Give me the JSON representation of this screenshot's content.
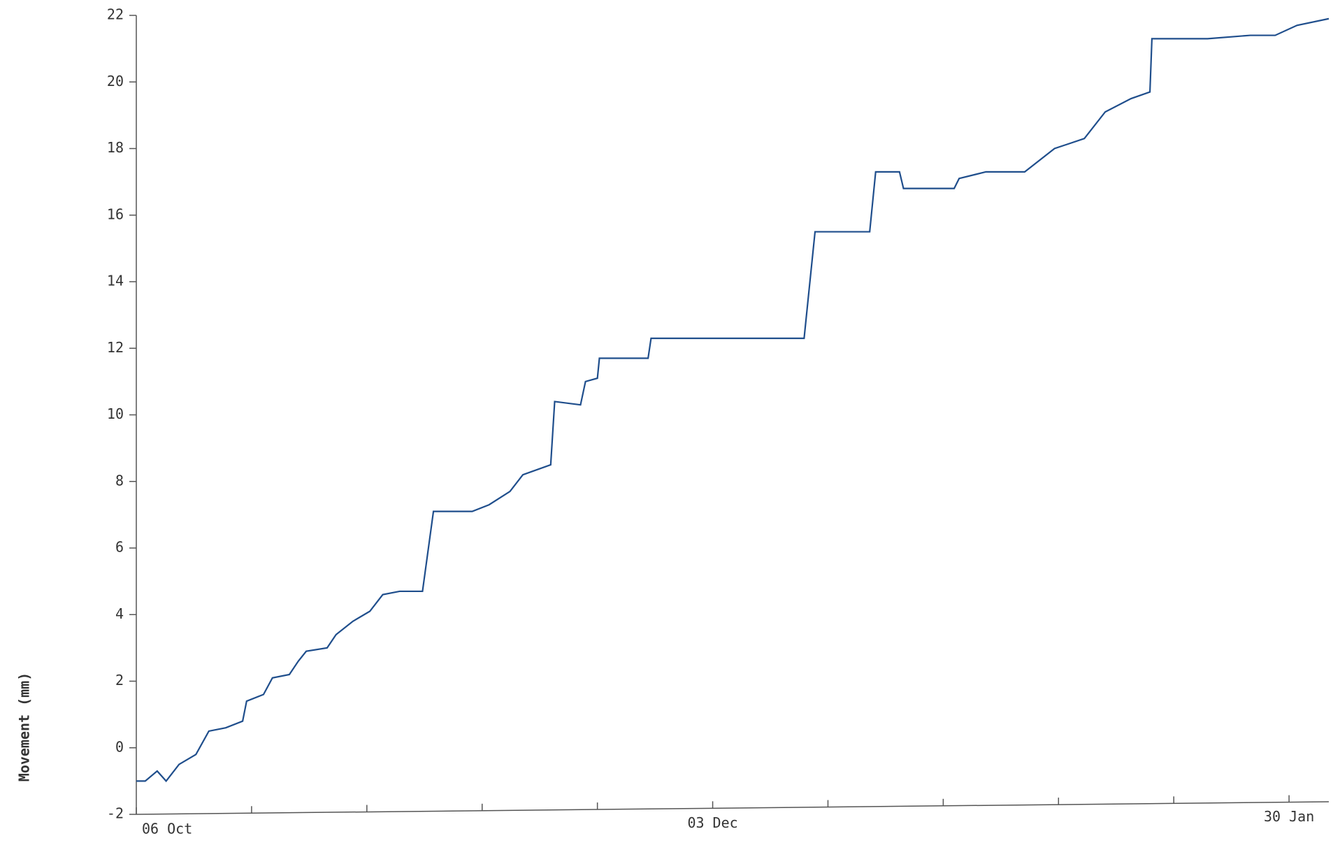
{
  "chart_data": {
    "type": "line",
    "ylabel": "Movement (mm)",
    "x": [
      0,
      0.9,
      2.1,
      3.0,
      4.3,
      6.0,
      7.3,
      9.0,
      10.7,
      11.1,
      12.8,
      13.7,
      15.4,
      16.3,
      17.1,
      19.2,
      20.1,
      21.8,
      23.5,
      24.8,
      26.5,
      28.8,
      29.9,
      33.8,
      35.5,
      37.6,
      38.9,
      41.7,
      42.1,
      44.7,
      45.2,
      46.4,
      46.6,
      51.5,
      51.8,
      67.2,
      68.3,
      73.8,
      74.4,
      76.8,
      77.2,
      82.3,
      82.8,
      85.5,
      89.4,
      92.4,
      95.4,
      97.5,
      100.1,
      102.0,
      102.2,
      107.8,
      112.1,
      114.6,
      116.8,
      120
    ],
    "series": [
      {
        "name": "Movement",
        "color": "#1f4e8c",
        "values": [
          -1.0,
          -1.0,
          -0.7,
          -1.0,
          -0.5,
          -0.2,
          0.5,
          0.6,
          0.8,
          1.4,
          1.6,
          2.1,
          2.2,
          2.6,
          2.9,
          3.0,
          3.4,
          3.8,
          4.1,
          4.6,
          4.7,
          4.7,
          7.1,
          7.1,
          7.3,
          7.7,
          8.2,
          8.5,
          10.4,
          10.3,
          11.0,
          11.1,
          11.7,
          11.7,
          12.3,
          12.3,
          15.5,
          15.5,
          17.3,
          17.3,
          16.8,
          16.8,
          17.1,
          17.3,
          17.3,
          18.0,
          18.3,
          19.1,
          19.5,
          19.7,
          21.3,
          21.3,
          21.4,
          21.4,
          21.7,
          21.9
        ]
      }
    ],
    "xlim": [
      0,
      120
    ],
    "xticks": [
      {
        "value": 0,
        "label": "06 Oct"
      },
      11.6,
      23.2,
      34.8,
      46.4,
      {
        "value": 58,
        "label": "03 Dec"
      },
      69.6,
      81.2,
      92.8,
      104.4,
      {
        "value": 116,
        "label": "30 Jan"
      }
    ],
    "ylim": [
      -2,
      22
    ],
    "yticks": [
      -2,
      0,
      2,
      4,
      6,
      8,
      10,
      12,
      14,
      16,
      18,
      20,
      22
    ],
    "grid": false
  }
}
